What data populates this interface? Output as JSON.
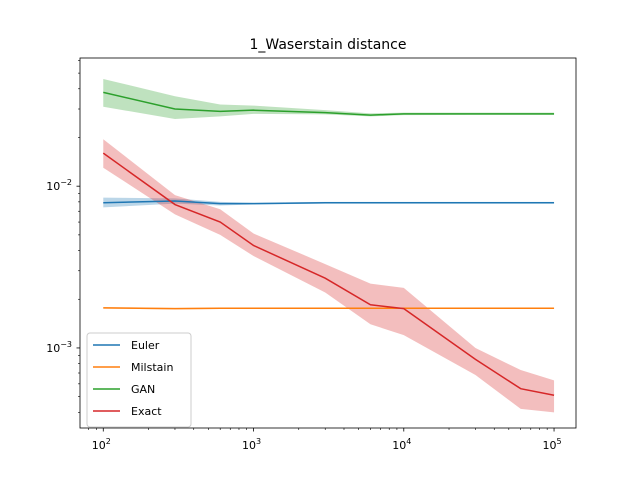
{
  "chart_data": {
    "type": "line",
    "title": "1_Waserstain distance",
    "xlabel": "",
    "ylabel": "",
    "xscale": "log",
    "yscale": "log",
    "xlim": [
      70,
      140000
    ],
    "ylim": [
      0.00032,
      0.062
    ],
    "x_ticks": [
      {
        "value": 100,
        "label_base": "10",
        "label_exp": "2"
      },
      {
        "value": 1000,
        "label_base": "10",
        "label_exp": "3"
      },
      {
        "value": 10000,
        "label_base": "10",
        "label_exp": "4"
      },
      {
        "value": 100000,
        "label_base": "10",
        "label_exp": "5"
      }
    ],
    "y_ticks": [
      {
        "value": 0.001,
        "label_base": "10",
        "label_exp": "−3"
      },
      {
        "value": 0.01,
        "label_base": "10",
        "label_exp": "−2"
      }
    ],
    "x": [
      100,
      300,
      600,
      1000,
      3000,
      6000,
      10000,
      30000,
      60000,
      100000
    ],
    "grid": false,
    "legend_position": "lower-left",
    "series": [
      {
        "name": "Euler",
        "color": "#1f77b4",
        "values": [
          0.0079,
          0.0081,
          0.0078,
          0.0078,
          0.0079,
          0.0079,
          0.0079,
          0.0079,
          0.0079,
          0.0079
        ],
        "lower": [
          0.0074,
          0.0078,
          0.0076,
          0.0077,
          0.0078,
          0.0078,
          0.0078,
          0.0078,
          0.0078,
          0.0078
        ],
        "upper": [
          0.0085,
          0.0084,
          0.008,
          0.0079,
          0.008,
          0.008,
          0.008,
          0.008,
          0.008,
          0.008
        ]
      },
      {
        "name": "Milstain",
        "color": "#ff7f0e",
        "values": [
          0.00177,
          0.00175,
          0.00176,
          0.00176,
          0.00176,
          0.00176,
          0.00176,
          0.00176,
          0.00176,
          0.00176
        ],
        "lower": [
          0.00175,
          0.00173,
          0.00174,
          0.00174,
          0.00174,
          0.00174,
          0.00174,
          0.00174,
          0.00174,
          0.00174
        ],
        "upper": [
          0.00179,
          0.00177,
          0.00178,
          0.00178,
          0.00178,
          0.00178,
          0.00178,
          0.00178,
          0.00178,
          0.00178
        ]
      },
      {
        "name": "GAN",
        "color": "#2ca02c",
        "values": [
          0.038,
          0.03,
          0.029,
          0.0295,
          0.0285,
          0.0275,
          0.028,
          0.028,
          0.028,
          0.028
        ],
        "lower": [
          0.031,
          0.026,
          0.027,
          0.028,
          0.0278,
          0.027,
          0.0275,
          0.0276,
          0.0276,
          0.0276
        ],
        "upper": [
          0.046,
          0.036,
          0.032,
          0.0315,
          0.0295,
          0.0282,
          0.0285,
          0.0285,
          0.0285,
          0.0285
        ]
      },
      {
        "name": "Exact",
        "color": "#d62728",
        "values": [
          0.016,
          0.0077,
          0.006,
          0.0043,
          0.0027,
          0.00185,
          0.00175,
          0.00085,
          0.00056,
          0.00051
        ],
        "lower": [
          0.013,
          0.0067,
          0.005,
          0.0037,
          0.0022,
          0.0014,
          0.0012,
          0.00068,
          0.00042,
          0.0004
        ],
        "upper": [
          0.0195,
          0.0088,
          0.0072,
          0.0051,
          0.0033,
          0.0025,
          0.00235,
          0.001,
          0.00073,
          0.00063
        ]
      }
    ]
  }
}
